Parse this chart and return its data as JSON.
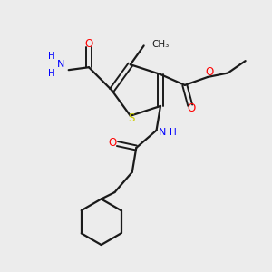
{
  "background_color": "#ececec",
  "bond_color": "#1a1a1a",
  "S_color": "#cccc00",
  "N_color": "#0000ff",
  "O_color": "#ff0000",
  "C_color": "#1a1a1a",
  "figsize": [
    3.0,
    3.0
  ],
  "dpi": 100,
  "xlim": [
    0,
    10
  ],
  "ylim": [
    0,
    10
  ]
}
